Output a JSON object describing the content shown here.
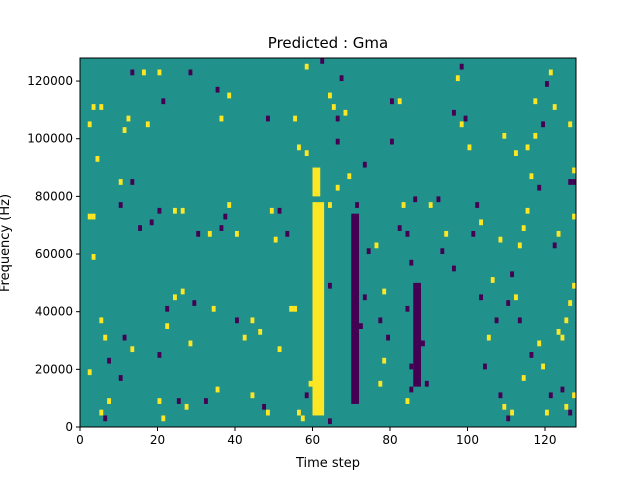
{
  "chart_data": {
    "type": "heatmap",
    "title": "Predicted : Gma",
    "xlabel": "Time step",
    "ylabel": "Frequency (Hz)",
    "xlim": [
      0,
      128
    ],
    "ylim": [
      0,
      128000
    ],
    "x_ticks": [
      0,
      20,
      40,
      60,
      80,
      100,
      120
    ],
    "y_ticks": [
      0,
      20000,
      40000,
      60000,
      80000,
      100000,
      120000
    ],
    "grid": false,
    "colormap": "viridis",
    "values": [
      -1,
      0,
      1
    ],
    "colors": {
      "low": "#440154",
      "mid": "#21918c",
      "high": "#fde725"
    },
    "background_value": 0,
    "n_time_steps": 128,
    "n_freq_bins": 64,
    "freq_bin_hz": 2000,
    "dominant_bands": [
      {
        "value": 1,
        "x_start": 60,
        "x_end": 63,
        "y_start": 4000,
        "y_end": 78000
      },
      {
        "value": 1,
        "x_start": 60,
        "x_end": 62,
        "y_start": 80000,
        "y_end": 90000
      },
      {
        "value": -1,
        "x_start": 70,
        "x_end": 72,
        "y_start": 8000,
        "y_end": 74000
      },
      {
        "value": -1,
        "x_start": 86,
        "x_end": 88,
        "y_start": 14000,
        "y_end": 50000
      }
    ],
    "cells": [
      [
        5,
        4000,
        1
      ],
      [
        6,
        2000,
        -1
      ],
      [
        7,
        8000,
        1
      ],
      [
        7,
        22000,
        -1
      ],
      [
        6,
        30000,
        1
      ],
      [
        2,
        72000,
        1
      ],
      [
        3,
        72000,
        1
      ],
      [
        3,
        58000,
        1
      ],
      [
        4,
        92000,
        1
      ],
      [
        2,
        104000,
        1
      ],
      [
        3,
        110000,
        1
      ],
      [
        5,
        110000,
        1
      ],
      [
        2,
        18000,
        1
      ],
      [
        5,
        36000,
        1
      ],
      [
        10,
        16000,
        -1
      ],
      [
        13,
        26000,
        1
      ],
      [
        11,
        30000,
        -1
      ],
      [
        10,
        84000,
        1
      ],
      [
        11,
        102000,
        1
      ],
      [
        13,
        84000,
        -1
      ],
      [
        10,
        76000,
        -1
      ],
      [
        15,
        68000,
        -1
      ],
      [
        18,
        70000,
        -1
      ],
      [
        20,
        74000,
        -1
      ],
      [
        12,
        106000,
        1
      ],
      [
        17,
        104000,
        1
      ],
      [
        13,
        122000,
        -1
      ],
      [
        16,
        122000,
        1
      ],
      [
        20,
        8000,
        1
      ],
      [
        21,
        2000,
        1
      ],
      [
        20,
        24000,
        -1
      ],
      [
        22,
        40000,
        -1
      ],
      [
        24,
        74000,
        1
      ],
      [
        26,
        74000,
        1
      ],
      [
        20,
        122000,
        1
      ],
      [
        21,
        112000,
        -1
      ],
      [
        22,
        34000,
        1
      ],
      [
        24,
        44000,
        1
      ],
      [
        25,
        8000,
        -1
      ],
      [
        27,
        6000,
        1
      ],
      [
        28,
        28000,
        1
      ],
      [
        29,
        42000,
        -1
      ],
      [
        30,
        66000,
        -1
      ],
      [
        26,
        46000,
        1
      ],
      [
        28,
        122000,
        -1
      ],
      [
        32,
        8000,
        -1
      ],
      [
        35,
        12000,
        1
      ],
      [
        34,
        40000,
        1
      ],
      [
        33,
        66000,
        1
      ],
      [
        36,
        68000,
        -1
      ],
      [
        38,
        76000,
        1
      ],
      [
        37,
        72000,
        -1
      ],
      [
        40,
        66000,
        1
      ],
      [
        38,
        114000,
        1
      ],
      [
        35,
        116000,
        -1
      ],
      [
        36,
        106000,
        1
      ],
      [
        40,
        36000,
        -1
      ],
      [
        42,
        30000,
        1
      ],
      [
        44,
        36000,
        1
      ],
      [
        44,
        10000,
        1
      ],
      [
        47,
        6000,
        -1
      ],
      [
        48,
        4000,
        1
      ],
      [
        46,
        32000,
        1
      ],
      [
        48,
        106000,
        -1
      ],
      [
        49,
        74000,
        1
      ],
      [
        51,
        74000,
        -1
      ],
      [
        50,
        64000,
        1
      ],
      [
        51,
        26000,
        1
      ],
      [
        53,
        66000,
        -1
      ],
      [
        54,
        40000,
        1
      ],
      [
        55,
        40000,
        1
      ],
      [
        56,
        4000,
        1
      ],
      [
        57,
        2000,
        1
      ],
      [
        58,
        10000,
        -1
      ],
      [
        59,
        14000,
        1
      ],
      [
        55,
        106000,
        1
      ],
      [
        56,
        96000,
        1
      ],
      [
        58,
        94000,
        1
      ],
      [
        58,
        124000,
        1
      ],
      [
        62,
        126000,
        -1
      ],
      [
        64,
        1000,
        -1
      ],
      [
        64,
        48000,
        -1
      ],
      [
        64,
        76000,
        1
      ],
      [
        66,
        82000,
        1
      ],
      [
        66,
        98000,
        -1
      ],
      [
        66,
        106000,
        -1
      ],
      [
        65,
        110000,
        1
      ],
      [
        64,
        114000,
        1
      ],
      [
        67,
        120000,
        -1
      ],
      [
        68,
        108000,
        1
      ],
      [
        69,
        86000,
        1
      ],
      [
        71,
        76000,
        -1
      ],
      [
        73,
        90000,
        -1
      ],
      [
        74,
        60000,
        -1
      ],
      [
        73,
        44000,
        -1
      ],
      [
        72,
        34000,
        -1
      ],
      [
        76,
        62000,
        1
      ],
      [
        77,
        36000,
        -1
      ],
      [
        78,
        46000,
        1
      ],
      [
        78,
        22000,
        1
      ],
      [
        77,
        14000,
        1
      ],
      [
        79,
        30000,
        -1
      ],
      [
        80,
        98000,
        -1
      ],
      [
        82,
        112000,
        1
      ],
      [
        80,
        112000,
        -1
      ],
      [
        82,
        68000,
        -1
      ],
      [
        84,
        66000,
        -1
      ],
      [
        83,
        76000,
        1
      ],
      [
        86,
        78000,
        -1
      ],
      [
        85,
        56000,
        -1
      ],
      [
        84,
        40000,
        -1
      ],
      [
        85,
        20000,
        -1
      ],
      [
        85,
        12000,
        -1
      ],
      [
        84,
        8000,
        1
      ],
      [
        88,
        28000,
        -1
      ],
      [
        89,
        14000,
        -1
      ],
      [
        90,
        76000,
        1
      ],
      [
        92,
        78000,
        -1
      ],
      [
        94,
        66000,
        1
      ],
      [
        93,
        60000,
        -1
      ],
      [
        96,
        54000,
        -1
      ],
      [
        96,
        108000,
        -1
      ],
      [
        98,
        104000,
        1
      ],
      [
        99,
        106000,
        -1
      ],
      [
        97,
        120000,
        1
      ],
      [
        98,
        124000,
        -1
      ],
      [
        100,
        96000,
        1
      ],
      [
        101,
        66000,
        -1
      ],
      [
        102,
        76000,
        -1
      ],
      [
        103,
        70000,
        1
      ],
      [
        103,
        44000,
        -1
      ],
      [
        104,
        20000,
        -1
      ],
      [
        105,
        30000,
        1
      ],
      [
        106,
        50000,
        1
      ],
      [
        107,
        36000,
        -1
      ],
      [
        108,
        10000,
        -1
      ],
      [
        109,
        6000,
        1
      ],
      [
        110,
        2000,
        -1
      ],
      [
        111,
        4000,
        1
      ],
      [
        112,
        44000,
        1
      ],
      [
        113,
        62000,
        1
      ],
      [
        114,
        68000,
        1
      ],
      [
        115,
        74000,
        1
      ],
      [
        116,
        86000,
        1
      ],
      [
        118,
        82000,
        -1
      ],
      [
        117,
        112000,
        1
      ],
      [
        119,
        104000,
        -1
      ],
      [
        120,
        118000,
        -1
      ],
      [
        121,
        122000,
        1
      ],
      [
        122,
        110000,
        1
      ],
      [
        123,
        32000,
        1
      ],
      [
        124,
        30000,
        1
      ],
      [
        125,
        36000,
        1
      ],
      [
        126,
        42000,
        1
      ],
      [
        127,
        48000,
        1
      ],
      [
        124,
        12000,
        -1
      ],
      [
        125,
        6000,
        1
      ],
      [
        126,
        4000,
        -1
      ],
      [
        127,
        10000,
        1
      ],
      [
        122,
        62000,
        -1
      ],
      [
        123,
        66000,
        1
      ],
      [
        126,
        84000,
        -1
      ],
      [
        127,
        84000,
        -1
      ],
      [
        127,
        72000,
        1
      ],
      [
        126,
        104000,
        1
      ],
      [
        127,
        88000,
        1
      ],
      [
        118,
        28000,
        1
      ],
      [
        119,
        20000,
        1
      ],
      [
        121,
        10000,
        -1
      ],
      [
        120,
        4000,
        1
      ],
      [
        114,
        16000,
        1
      ],
      [
        116,
        24000,
        -1
      ],
      [
        113,
        36000,
        -1
      ],
      [
        110,
        42000,
        -1
      ],
      [
        111,
        52000,
        -1
      ],
      [
        108,
        64000,
        1
      ],
      [
        109,
        100000,
        1
      ],
      [
        112,
        94000,
        1
      ],
      [
        115,
        96000,
        1
      ],
      [
        117,
        100000,
        1
      ]
    ]
  }
}
